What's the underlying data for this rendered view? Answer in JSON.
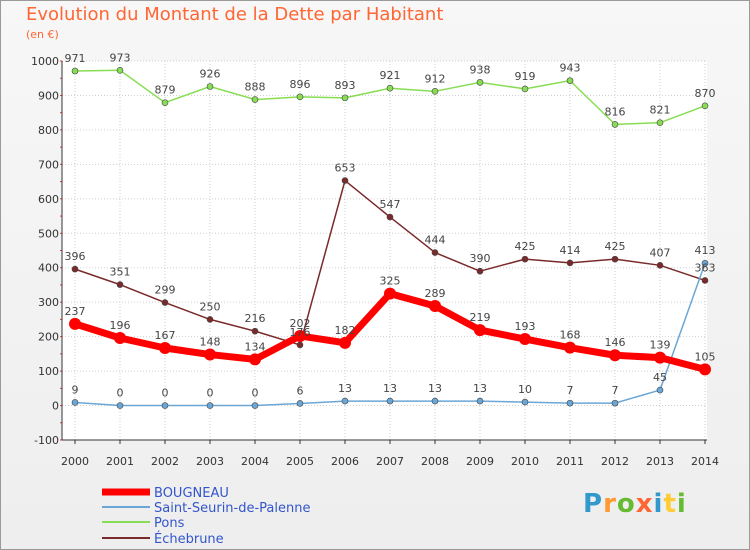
{
  "title": "Evolution du Montant de la Dette par Habitant",
  "unit": "(en €)",
  "logo": {
    "text": "Proxiti",
    "letters": [
      "P",
      "r",
      "o",
      "x",
      "i",
      "t",
      "i"
    ],
    "colors": [
      "#3399cc",
      "#ff9933",
      "#66bb33",
      "#ff6633",
      "#3399cc",
      "#ffcc33",
      "#66bb33"
    ]
  },
  "chart_data": {
    "type": "line",
    "title": "Evolution du Montant de la Dette par Habitant",
    "ylabel": "(en €)",
    "xlabel": "",
    "x": [
      "2000",
      "2001",
      "2002",
      "2003",
      "2004",
      "2005",
      "2006",
      "2007",
      "2008",
      "2009",
      "2010",
      "2011",
      "2012",
      "2013",
      "2014"
    ],
    "ylim": [
      -100,
      1000
    ],
    "yticks": [
      "-100",
      "0",
      "100",
      "200",
      "300",
      "400",
      "500",
      "600",
      "700",
      "800",
      "900",
      "1000"
    ],
    "grid": true,
    "legend": "bottom-left",
    "series": [
      {
        "name": "BOUGNEAU",
        "color": "#ff0000",
        "values": [
          237,
          196,
          167,
          148,
          134,
          202,
          182,
          325,
          289,
          219,
          193,
          168,
          146,
          139,
          105
        ],
        "labels": [
          "237",
          "196",
          "167",
          "148",
          "134",
          "202",
          "182",
          "325",
          "289",
          "219",
          "193",
          "168",
          "146",
          "139",
          "105"
        ]
      },
      {
        "name": "Saint-Seurin-de-Palenne",
        "color": "#6aa6d6",
        "values": [
          9,
          0,
          0,
          0,
          0,
          6,
          13,
          13,
          13,
          13,
          10,
          7,
          7,
          45,
          413
        ],
        "labels": [
          "9",
          "0",
          "0",
          "0",
          "0",
          "6",
          "13",
          "13",
          "13",
          "13",
          "10",
          "7",
          "7",
          "45",
          "413"
        ]
      },
      {
        "name": "Pons",
        "color": "#88dd55",
        "values": [
          971,
          973,
          879,
          926,
          888,
          896,
          893,
          921,
          912,
          938,
          919,
          943,
          816,
          821,
          870
        ],
        "labels": [
          "971",
          "973",
          "879",
          "926",
          "888",
          "896",
          "893",
          "921",
          "912",
          "938",
          "919",
          "943",
          "816",
          "821",
          "870"
        ]
      },
      {
        "name": "Échebrune",
        "color": "#7a2a2a",
        "values": [
          396,
          351,
          299,
          250,
          216,
          176,
          653,
          547,
          444,
          390,
          425,
          414,
          425,
          407,
          363
        ],
        "labels": [
          "396",
          "351",
          "299",
          "250",
          "216",
          "176",
          "653",
          "547",
          "444",
          "390",
          "425",
          "414",
          "425",
          "407",
          "363"
        ]
      }
    ]
  }
}
